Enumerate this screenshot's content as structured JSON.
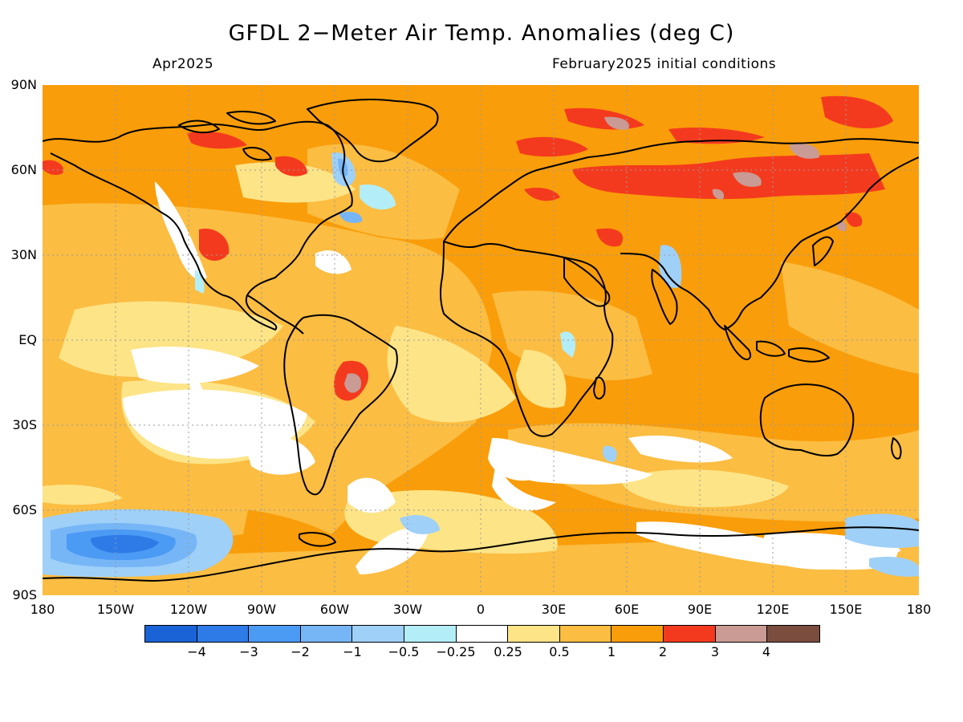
{
  "title": "GFDL 2−Meter Air Temp. Anomalies (deg C)",
  "subtitle_left": "Apr2025",
  "subtitle_right": "February2025 initial conditions",
  "lat_labels": [
    "90N",
    "60N",
    "30N",
    "EQ",
    "30S",
    "60S",
    "90S"
  ],
  "lon_labels": [
    "180",
    "150W",
    "120W",
    "90W",
    "60W",
    "30W",
    "0",
    "30E",
    "60E",
    "90E",
    "120E",
    "150E",
    "180"
  ],
  "colorbar": {
    "colors": [
      "#1a63d6",
      "#2e7be8",
      "#4b9af4",
      "#77b6f6",
      "#9fd0f8",
      "#b3eef8",
      "#ffffff",
      "#fde487",
      "#fbbd42",
      "#f99d0a",
      "#f43a1e",
      "#c99b94",
      "#7a4d3f"
    ],
    "labels": [
      "−4",
      "−3",
      "−2",
      "−1",
      "−0.5",
      "−0.25",
      "0.25",
      "0.5",
      "1",
      "2",
      "3",
      "4"
    ]
  },
  "colors": {
    "background_anomaly": "#f99d0a",
    "mid_anomaly": "#fbbd42",
    "weak_anomaly": "#fde487",
    "hot_anomaly": "#f43a1e",
    "coastline": "#000000",
    "grid": "#9a9a9a"
  }
}
